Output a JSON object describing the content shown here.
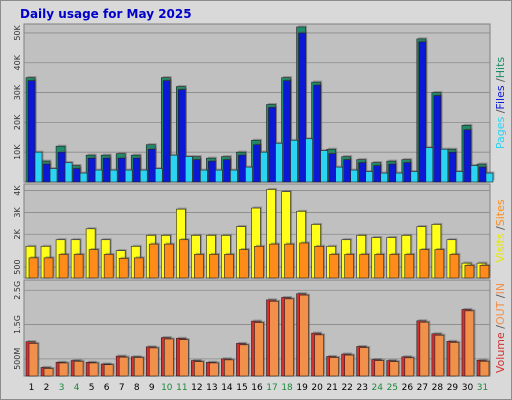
{
  "chart_data": {
    "type": "bar",
    "title": "Daily usage for May 2025",
    "categories": [
      "1",
      "2",
      "3",
      "4",
      "5",
      "6",
      "7",
      "8",
      "9",
      "10",
      "11",
      "12",
      "13",
      "14",
      "15",
      "16",
      "17",
      "18",
      "19",
      "20",
      "21",
      "22",
      "23",
      "24",
      "25",
      "26",
      "27",
      "28",
      "29",
      "30",
      "31"
    ],
    "weekend_days": [
      "3",
      "4",
      "10",
      "11",
      "17",
      "18",
      "24",
      "25",
      "31"
    ],
    "colors": {
      "hits": "#1e8c6a",
      "files": "#0b18d6",
      "pages": "#2ad4f2",
      "visits": "#ffff1a",
      "sites": "#ff8c1a",
      "kbin": "#d43030",
      "kbout": "#f0904a",
      "weekday_label": "#000000",
      "weekend_label": "#1a8a3a",
      "panel_bg": "#c0c0c0",
      "frame_bg": "#d9d9d9"
    },
    "panels": [
      {
        "id": "hits-files-pages",
        "label_parts": [
          {
            "text": "Pages",
            "color": "#2ad4f2"
          },
          {
            "text": " /",
            "color": "#555555"
          },
          {
            "text": "Files",
            "color": "#0b18d6"
          },
          {
            "text": " /",
            "color": "#555555"
          },
          {
            "text": "Hits",
            "color": "#1e8c6a"
          }
        ],
        "ylim": [
          0,
          53000
        ],
        "ticks": [
          {
            "v": 10000,
            "label": "10K"
          },
          {
            "v": 20000,
            "label": "20K"
          },
          {
            "v": 30000,
            "label": "30K"
          },
          {
            "v": 40000,
            "label": "40K"
          },
          {
            "v": 50000,
            "label": "50K"
          }
        ],
        "series": [
          {
            "name": "Hits",
            "key": "hits",
            "values": [
              35000,
              7000,
              12000,
              5500,
              9000,
              9000,
              9500,
              9000,
              12500,
              35000,
              32000,
              8500,
              8000,
              8500,
              10000,
              14000,
              26000,
              35000,
              52000,
              33500,
              11000,
              8500,
              7500,
              6500,
              7000,
              7500,
              48000,
              30000,
              11000,
              19000,
              6000
            ]
          },
          {
            "name": "Files",
            "key": "files",
            "values": [
              34000,
              6000,
              10000,
              4500,
              8000,
              8000,
              8000,
              8000,
              11000,
              34000,
              31000,
              7500,
              7000,
              7500,
              9000,
              12500,
              25000,
              34000,
              50000,
              32500,
              9500,
              7500,
              6500,
              5500,
              6000,
              6500,
              47000,
              29000,
              10000,
              17500,
              5000
            ]
          },
          {
            "name": "Pages",
            "key": "pages",
            "values": [
              10000,
              4500,
              6500,
              3000,
              4000,
              4000,
              4000,
              4000,
              4500,
              9000,
              8500,
              4000,
              4000,
              4000,
              5000,
              10000,
              13000,
              14000,
              14500,
              10500,
              5000,
              4000,
              3500,
              3000,
              3000,
              3500,
              11500,
              11000,
              3500,
              5500,
              3000
            ]
          }
        ]
      },
      {
        "id": "visits-sites",
        "label_parts": [
          {
            "text": "Visits",
            "color": "#e6e600"
          },
          {
            "text": " /",
            "color": "#555555"
          },
          {
            "text": "Sites",
            "color": "#ff8c1a"
          }
        ],
        "ylim": [
          0,
          4300
        ],
        "ticks": [
          {
            "v": 500,
            "label": "500"
          },
          {
            "v": 2000,
            "label": "2K"
          },
          {
            "v": 3000,
            "label": "3K"
          },
          {
            "v": 4000,
            "label": "4K"
          }
        ],
        "series": [
          {
            "name": "Visits",
            "key": "visits",
            "values": [
              1450,
              1450,
              1750,
              1750,
              2250,
              1750,
              1250,
              1450,
              1950,
              1950,
              3150,
              1950,
              1950,
              1950,
              2350,
              3200,
              4050,
              3950,
              3050,
              2450,
              1450,
              1750,
              1950,
              1850,
              1850,
              1950,
              2350,
              2450,
              1750,
              680,
              680
            ]
          },
          {
            "name": "Sites",
            "key": "sites",
            "values": [
              920,
              920,
              1080,
              1080,
              1300,
              1080,
              900,
              920,
              1550,
              1550,
              1750,
              1080,
              1080,
              1080,
              1300,
              1450,
              1550,
              1550,
              1600,
              1450,
              1080,
              1080,
              1080,
              1080,
              1080,
              1080,
              1300,
              1300,
              1080,
              580,
              580
            ]
          }
        ]
      },
      {
        "id": "volume",
        "label_parts": [
          {
            "text": "Volume",
            "color": "#d43030"
          },
          {
            "text": "  /",
            "color": "#555555"
          },
          {
            "text": "OUT",
            "color": "#f0904a"
          },
          {
            "text": " /",
            "color": "#555555"
          },
          {
            "text": "IN",
            "color": "#f0904a"
          }
        ],
        "ylim": [
          0,
          2800
        ],
        "ticks": [
          {
            "v": 500,
            "label": "500M"
          },
          {
            "v": 1500,
            "label": "1.5G"
          },
          {
            "v": 2500,
            "label": "2.5G"
          }
        ],
        "series": [
          {
            "name": "Volume",
            "key": "kbin",
            "values": [
              1000,
              250,
              400,
              450,
              400,
              350,
              580,
              560,
              850,
              1120,
              1100,
              450,
              400,
              500,
              950,
              1600,
              2220,
              2290,
              2400,
              1250,
              570,
              640,
              860,
              480,
              450,
              560,
              1610,
              1230,
              1010,
              1940,
              460
            ]
          },
          {
            "name": "OUT",
            "key": "kbout",
            "values": [
              950,
              220,
              380,
              430,
              380,
              330,
              550,
              540,
              820,
              1080,
              1060,
              420,
              380,
              470,
              910,
              1560,
              2180,
              2250,
              2360,
              1200,
              540,
              610,
              830,
              450,
              420,
              530,
              1570,
              1190,
              980,
              1900,
              430
            ]
          }
        ]
      }
    ]
  }
}
